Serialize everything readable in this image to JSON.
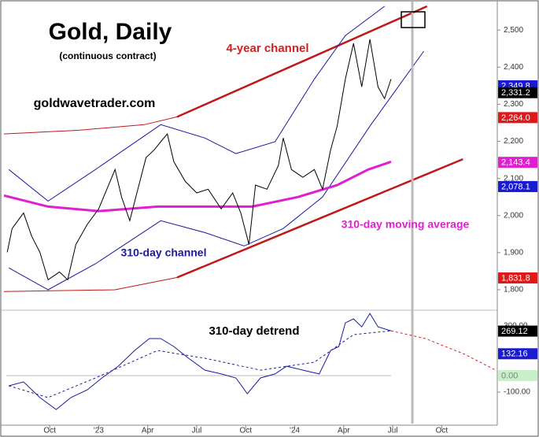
{
  "chart_data": [
    {
      "type": "line",
      "title": "Gold, Daily",
      "subtitle": "(continuous contract)",
      "annotations": [
        {
          "text": "goldwavetrader.com",
          "color": "#000000"
        },
        {
          "text": "4-year channel",
          "color": "#d42020"
        },
        {
          "text": "310-day channel",
          "color": "#1a1aa0"
        },
        {
          "text": "310-day moving average",
          "color": "#e020d0"
        }
      ],
      "xlim": [
        -5.8,
        24.4
      ],
      "ylim": [
        1749,
        2581
      ],
      "yticks": [
        {
          "value": 1800,
          "label": "1,800"
        },
        {
          "value": 1900,
          "label": "1,900"
        },
        {
          "value": 2000,
          "label": "2,000"
        },
        {
          "value": 2100,
          "label": "2,100"
        },
        {
          "value": 2200,
          "label": "2,200"
        },
        {
          "value": 2300,
          "label": "2,300"
        },
        {
          "value": 2400,
          "label": "2,400"
        },
        {
          "value": 2500,
          "label": "2,500"
        }
      ],
      "cycle_line_x": 19.2,
      "series": [
        {
          "color": "#c01818",
          "width": 2.5,
          "x": [
            4.8,
            20.1
          ],
          "values": [
            2266,
            2564
          ]
        },
        {
          "color": "#c01818",
          "width": 1,
          "x": [
            -5.8,
            -1.2,
            2.8,
            4.8
          ],
          "values": [
            2220,
            2230,
            2245,
            2266
          ]
        },
        {
          "color": "#c01818",
          "width": 2.5,
          "x": [
            4.8,
            22.3
          ],
          "values": [
            1833,
            2152
          ]
        },
        {
          "color": "#c01818",
          "width": 1,
          "x": [
            -5.8,
            1.0,
            4.8
          ],
          "values": [
            1795,
            1800,
            1833
          ]
        },
        {
          "color": "#1a1aa0",
          "width": 1,
          "x": [
            -5.5,
            -3.1,
            -0.2,
            3.8,
            6.5,
            8.4,
            10.8,
            13.2,
            15.1,
            17.5
          ],
          "values": [
            2124,
            2039,
            2124,
            2245,
            2209,
            2167,
            2199,
            2368,
            2485,
            2564
          ]
        },
        {
          "color": "#1a1aa0",
          "width": 1,
          "x": [
            -5.5,
            -3.1,
            -0.2,
            3.8,
            6.5,
            8.9,
            11.3,
            13.7,
            16.6,
            19.9
          ],
          "values": [
            1859,
            1800,
            1870,
            1986,
            1954,
            1918,
            1965,
            2050,
            2241,
            2443
          ]
        },
        {
          "color": "#e020d0",
          "width": 3,
          "x": [
            -5.8,
            -3.1,
            0,
            3.6,
            6.5,
            9.4,
            12.2,
            14.6,
            16.5,
            17.9
          ],
          "values": [
            2054,
            2024,
            2012,
            2024,
            2024,
            2024,
            2050,
            2082,
            2124,
            2145
          ]
        },
        {
          "color": "#000000",
          "width": 1,
          "x": [
            -5.6,
            -5.3,
            -4.6,
            -4.1,
            -3.6,
            -3.1,
            -2.4,
            -1.9,
            -1.4,
            -0.7,
            0,
            0.5,
            1.0,
            1.4,
            1.9,
            2.4,
            2.9,
            3.4,
            3.8,
            4.2,
            4.6,
            5.3,
            6.0,
            6.7,
            7.5,
            8.2,
            8.7,
            9.2,
            9.6,
            10.3,
            11.0,
            11.3,
            11.8,
            12.5,
            13.2,
            13.7,
            14.2,
            14.6,
            15.1,
            15.6,
            16.1,
            16.6,
            17.1,
            17.5,
            17.9
          ],
          "values": [
            1901,
            1965,
            2007,
            1944,
            1901,
            1827,
            1848,
            1827,
            1922,
            1976,
            2018,
            2071,
            2124,
            2050,
            1986,
            2071,
            2156,
            2177,
            2199,
            2220,
            2145,
            2092,
            2061,
            2071,
            2018,
            2061,
            2007,
            1922,
            2082,
            2071,
            2135,
            2209,
            2124,
            2103,
            2124,
            2071,
            2177,
            2241,
            2368,
            2464,
            2347,
            2475,
            2347,
            2315,
            2368
          ]
        }
      ],
      "price_tags": [
        {
          "value": 2349.8,
          "label": "2,349.8",
          "color": "#1a1ad0",
          "text_color": "#ffffff"
        },
        {
          "value": 2331.2,
          "label": "2,331.2",
          "color": "#000000",
          "text_color": "#ffffff"
        },
        {
          "value": 2264.0,
          "label": "2,264.0",
          "color": "#e01818",
          "text_color": "#ffffff"
        },
        {
          "value": 2143.4,
          "label": "2,143.4",
          "color": "#e020d0",
          "text_color": "#ffffff"
        },
        {
          "value": 2078.1,
          "label": "2,078.1",
          "color": "#1a1ad0",
          "text_color": "#ffffff"
        },
        {
          "value": 1831.8,
          "label": "1,831.8",
          "color": "#e01818",
          "text_color": "#ffffff"
        }
      ]
    },
    {
      "type": "line",
      "title": "310-day detrend",
      "xlim": [
        -5.8,
        24.4
      ],
      "ylim": [
        -300,
        386
      ],
      "yticks": [
        {
          "value": 300,
          "label": "300.00"
        },
        {
          "value": -100,
          "label": "-100.00"
        }
      ],
      "xticks": [
        {
          "value": -3,
          "label": "Oct"
        },
        {
          "value": 0,
          "label": "'23"
        },
        {
          "value": 3,
          "label": "Apr"
        },
        {
          "value": 6,
          "label": "Jul"
        },
        {
          "value": 9,
          "label": "Oct"
        },
        {
          "value": 12,
          "label": "'24"
        },
        {
          "value": 15,
          "label": "Apr"
        },
        {
          "value": 18,
          "label": "Jul"
        },
        {
          "value": 21,
          "label": "Oct"
        }
      ],
      "zero_line": 0,
      "series": [
        {
          "color": "#1a1aa0",
          "width": 1,
          "dash": true,
          "x": [
            -5.5,
            -3.1,
            -0.2,
            3.6,
            6.5,
            9.9,
            13.2,
            15.6,
            17.9
          ],
          "values": [
            -62,
            -133,
            -14,
            152,
            105,
            33,
            81,
            248,
            271
          ]
        },
        {
          "color": "#d42020",
          "width": 1,
          "dash": true,
          "x": [
            17.9,
            20.0,
            22.4,
            24.3
          ],
          "values": [
            271,
            224,
            129,
            33
          ]
        },
        {
          "color": "#1a1aa0",
          "width": 1,
          "x": [
            -5.5,
            -4.6,
            -3.6,
            -2.6,
            -1.7,
            -0.7,
            0.2,
            1.2,
            2.2,
            3.1,
            3.8,
            4.6,
            5.5,
            6.5,
            7.5,
            8.4,
            9.1,
            9.9,
            10.8,
            11.5,
            12.5,
            13.5,
            14.2,
            14.7,
            15.1,
            15.6,
            16.1,
            16.6,
            17.1,
            17.9
          ],
          "values": [
            -62,
            -38,
            -133,
            -205,
            -133,
            -86,
            -14,
            57,
            152,
            224,
            224,
            176,
            105,
            33,
            10,
            -14,
            -110,
            -14,
            10,
            57,
            33,
            10,
            152,
            176,
            319,
            343,
            295,
            376,
            295,
            271
          ]
        }
      ],
      "price_tags": [
        {
          "value": 269.12,
          "label": "269.12",
          "color": "#000000",
          "text_color": "#ffffff"
        },
        {
          "value": 132.16,
          "label": "132.16",
          "color": "#1a1ad0",
          "text_color": "#ffffff"
        },
        {
          "value": 0.0,
          "label": "0.00",
          "color": "#c8f0c8",
          "text_color": "#808080"
        }
      ]
    }
  ]
}
